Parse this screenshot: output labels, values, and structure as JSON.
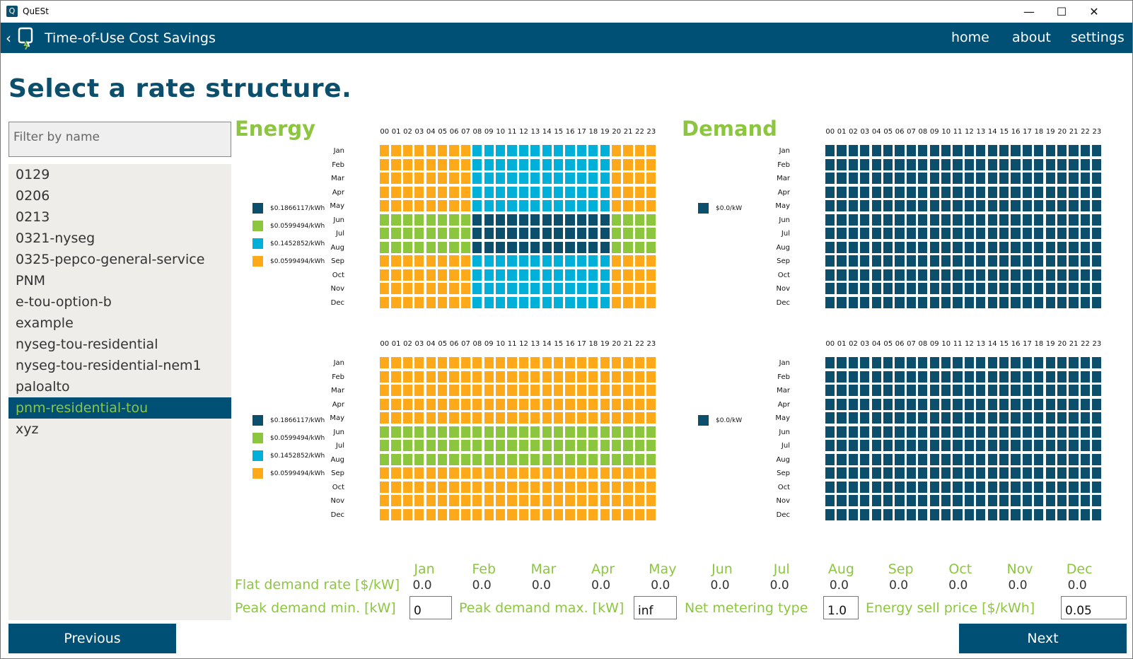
{
  "window": {
    "title": "QuESt",
    "minimize": "—",
    "maximize": "☐",
    "close": "✕"
  },
  "actionbar": {
    "back_icon": "‹",
    "title": "Time-of-Use Cost Savings",
    "nav": [
      "home",
      "about",
      "settings"
    ]
  },
  "page": {
    "title": "Select a rate structure."
  },
  "filter": {
    "placeholder": "Filter by name",
    "value": ""
  },
  "rate_list": {
    "items": [
      "0129",
      "0206",
      "0213",
      "0321-nyseg",
      "0325-pepco-general-service",
      "PNM",
      "e-tou-option-b",
      "example",
      "nyseg-tou-residential",
      "nyseg-tou-residential-nem1",
      "paloalto",
      "pnm-residential-tou",
      "xyz"
    ],
    "selected": "pnm-residential-tou"
  },
  "sections": {
    "energy": "Energy",
    "demand": "Demand"
  },
  "hours": [
    "00",
    "01",
    "02",
    "03",
    "04",
    "05",
    "06",
    "07",
    "08",
    "09",
    "10",
    "11",
    "12",
    "13",
    "14",
    "15",
    "16",
    "17",
    "18",
    "19",
    "20",
    "21",
    "22",
    "23"
  ],
  "months": [
    "Jan",
    "Feb",
    "Mar",
    "Apr",
    "May",
    "Jun",
    "Jul",
    "Aug",
    "Sep",
    "Oct",
    "Nov",
    "Dec"
  ],
  "colors": {
    "period0": "#0b4f6c",
    "period1": "#8cc63f",
    "period2": "#01b0d8",
    "period3": "#fda91a",
    "brand": "#005076"
  },
  "energy_legend": [
    "$0.1866117/kWh",
    "$0.0599494/kWh",
    "$0.1452852/kWh",
    "$0.0599494/kWh"
  ],
  "demand_legend": [
    "$0.0/kW"
  ],
  "schedules": {
    "energy_weekday": {
      "rows": [
        "333333332222222222223333",
        "333333332222222222223333",
        "333333332222222222223333",
        "333333332222222222223333",
        "333333332222222222223333",
        "111111110000000000001111",
        "111111110000000000001111",
        "111111110000000000001111",
        "333333332222222222223333",
        "333333332222222222223333",
        "333333332222222222223333",
        "333333332222222222223333"
      ]
    },
    "energy_weekend": {
      "rows": [
        "333333333333333333333333",
        "333333333333333333333333",
        "333333333333333333333333",
        "333333333333333333333333",
        "333333333333333333333333",
        "111111111111111111111111",
        "111111111111111111111111",
        "111111111111111111111111",
        "333333333333333333333333",
        "333333333333333333333333",
        "333333333333333333333333",
        "333333333333333333333333"
      ]
    },
    "demand_weekday": {
      "rows": "all-0"
    },
    "demand_weekend": {
      "rows": "all-0"
    }
  },
  "flat_demand": {
    "label": "Flat demand rate [$/kW]",
    "months": [
      "Jan",
      "Feb",
      "Mar",
      "Apr",
      "May",
      "Jun",
      "Jul",
      "Aug",
      "Sep",
      "Oct",
      "Nov",
      "Dec"
    ],
    "values": [
      "0.0",
      "0.0",
      "0.0",
      "0.0",
      "0.0",
      "0.0",
      "0.0",
      "0.0",
      "0.0",
      "0.0",
      "0.0",
      "0.0"
    ]
  },
  "params": {
    "peak_min_label": "Peak demand min. [kW]",
    "peak_min_value": "0",
    "peak_max_label": "Peak demand max. [kW]",
    "peak_max_value": "inf",
    "net_metering_label": "Net metering type",
    "net_metering_value": "1.0",
    "sell_price_label": "Energy sell price [$/kWh]",
    "sell_price_value": "0.05"
  },
  "buttons": {
    "previous": "Previous",
    "next": "Next"
  }
}
